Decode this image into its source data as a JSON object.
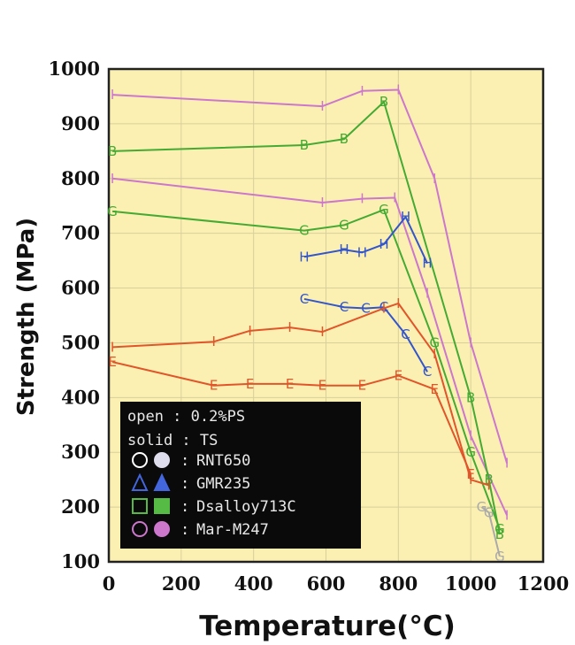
{
  "chart_data": {
    "type": "line",
    "xlabel": "Temperature(°C)",
    "ylabel": "Strength (MPa)",
    "xlim": [
      0,
      1200
    ],
    "ylim": [
      100,
      1000
    ],
    "xticks": [
      "0",
      "200",
      "400",
      "600",
      "800",
      "1000",
      "1200"
    ],
    "yticks": [
      "100",
      "200",
      "300",
      "400",
      "500",
      "600",
      "700",
      "800",
      "900",
      "1000"
    ],
    "plot_background": "#fbf0b2",
    "series": [
      {
        "marker": "I",
        "color": "#cc77cc",
        "points": [
          [
            10,
            953
          ],
          [
            590,
            932
          ],
          [
            700,
            960
          ],
          [
            800,
            962
          ],
          [
            900,
            800
          ],
          [
            1000,
            500
          ],
          [
            1100,
            280
          ]
        ]
      },
      {
        "marker": "I",
        "color": "#cc77cc",
        "points": [
          [
            10,
            800
          ],
          [
            590,
            756
          ],
          [
            700,
            763
          ],
          [
            790,
            765
          ],
          [
            880,
            590
          ],
          [
            1000,
            330
          ],
          [
            1100,
            185
          ]
        ]
      },
      {
        "marker": "B",
        "color": "#44aa33",
        "points": [
          [
            10,
            850
          ],
          [
            540,
            861
          ],
          [
            650,
            872
          ],
          [
            760,
            940
          ],
          [
            1000,
            400
          ],
          [
            1050,
            250
          ],
          [
            1080,
            150
          ]
        ]
      },
      {
        "marker": "G",
        "color": "#44aa33",
        "points": [
          [
            10,
            740
          ],
          [
            540,
            705
          ],
          [
            650,
            715
          ],
          [
            760,
            743
          ],
          [
            900,
            500
          ],
          [
            1000,
            300
          ],
          [
            1080,
            160
          ]
        ]
      },
      {
        "marker": "H",
        "color": "#3355cc",
        "points": [
          [
            540,
            657
          ],
          [
            650,
            670
          ],
          [
            700,
            665
          ],
          [
            760,
            680
          ],
          [
            820,
            730
          ],
          [
            880,
            645
          ]
        ]
      },
      {
        "marker": "C",
        "color": "#3355cc",
        "points": [
          [
            540,
            580
          ],
          [
            650,
            565
          ],
          [
            710,
            563
          ],
          [
            760,
            565
          ],
          [
            820,
            515
          ],
          [
            880,
            447
          ]
        ]
      },
      {
        "marker": "I",
        "color": "#e0552a",
        "points": [
          [
            10,
            492
          ],
          [
            290,
            502
          ],
          [
            390,
            522
          ],
          [
            500,
            528
          ],
          [
            590,
            520
          ],
          [
            760,
            563
          ],
          [
            800,
            572
          ],
          [
            900,
            480
          ],
          [
            1000,
            250
          ],
          [
            1050,
            240
          ]
        ]
      },
      {
        "marker": "E",
        "color": "#e0552a",
        "points": [
          [
            10,
            465
          ],
          [
            290,
            422
          ],
          [
            390,
            425
          ],
          [
            500,
            425
          ],
          [
            590,
            422
          ],
          [
            700,
            422
          ],
          [
            800,
            440
          ],
          [
            900,
            415
          ],
          [
            1000,
            260
          ]
        ]
      },
      {
        "marker": "G",
        "color": "#aaaaaa",
        "points": [
          [
            1030,
            200
          ],
          [
            1050,
            190
          ],
          [
            1080,
            110
          ]
        ]
      }
    ],
    "legend": {
      "placement": "bottom-left",
      "lines": [
        "open : 0.2%PS",
        "solid : TS"
      ],
      "entries": [
        {
          "label": "RNT650",
          "shape": "circle",
          "open_color": "#ffffff",
          "solid_color": "#ddddee"
        },
        {
          "label": "GMR235",
          "shape": "triangle",
          "open_color": "#4466dd",
          "solid_color": "#4466dd"
        },
        {
          "label": "Dsalloy713C",
          "shape": "square",
          "open_color": "#55bb44",
          "solid_color": "#55bb44"
        },
        {
          "label": "Mar-M247",
          "shape": "circle",
          "open_color": "#cc77cc",
          "solid_color": "#cc77cc"
        }
      ]
    }
  }
}
